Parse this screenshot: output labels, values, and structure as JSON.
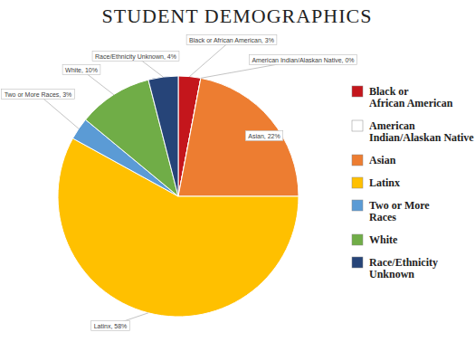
{
  "chart_data": {
    "type": "pie",
    "title": "STUDENT DEMOGRAPHICS",
    "categories": [
      "Black or African American",
      "American Indian/Alaskan Native",
      "Asian",
      "Latinx",
      "Two or More Races",
      "White",
      "Race/Ethnicity Unknown"
    ],
    "values": [
      3,
      0,
      22,
      58,
      3,
      10,
      4
    ],
    "value_labels": [
      "Black or African American, 3%",
      "American Indian/Alaskan Native, 0%",
      "Asian, 22%",
      "Latinx, 58%",
      "Two or More Races, 3%",
      "White, 10%",
      "Race/Ethnicity Unknown, 4%"
    ],
    "colors": [
      "#c4161c",
      "#ffffff",
      "#ed7d31",
      "#ffc000",
      "#5b9bd5",
      "#70ad47",
      "#264478"
    ],
    "legend": "right",
    "data_labels": true
  }
}
